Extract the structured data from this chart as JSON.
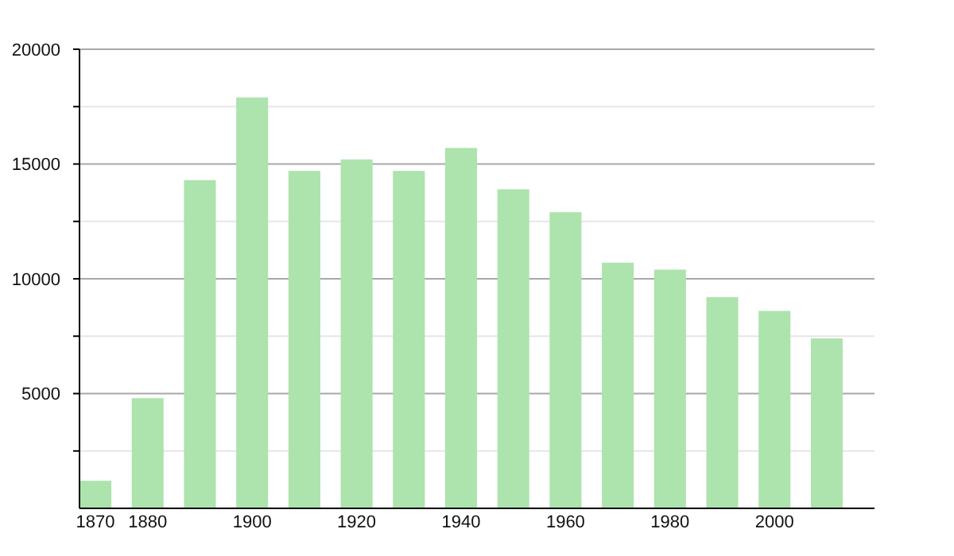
{
  "chart_data": {
    "type": "bar",
    "categories": [
      "1870",
      "1880",
      null,
      "1900",
      null,
      "1920",
      null,
      "1940",
      null,
      "1960",
      null,
      "1980",
      null,
      "2000",
      null
    ],
    "values": [
      1200,
      4800,
      14300,
      17900,
      14700,
      15200,
      14700,
      15700,
      13900,
      12900,
      10700,
      10400,
      9200,
      8600,
      7400
    ],
    "color": "#ade3ad",
    "ylim": [
      0,
      20000
    ],
    "yticks": [
      {
        "value": 2500,
        "label": null
      },
      5000,
      {
        "value": 7500,
        "label": null
      },
      10000,
      {
        "value": 12500,
        "label": null
      },
      15000,
      {
        "value": 17500,
        "label": null
      },
      20000
    ],
    "grid": true
  }
}
